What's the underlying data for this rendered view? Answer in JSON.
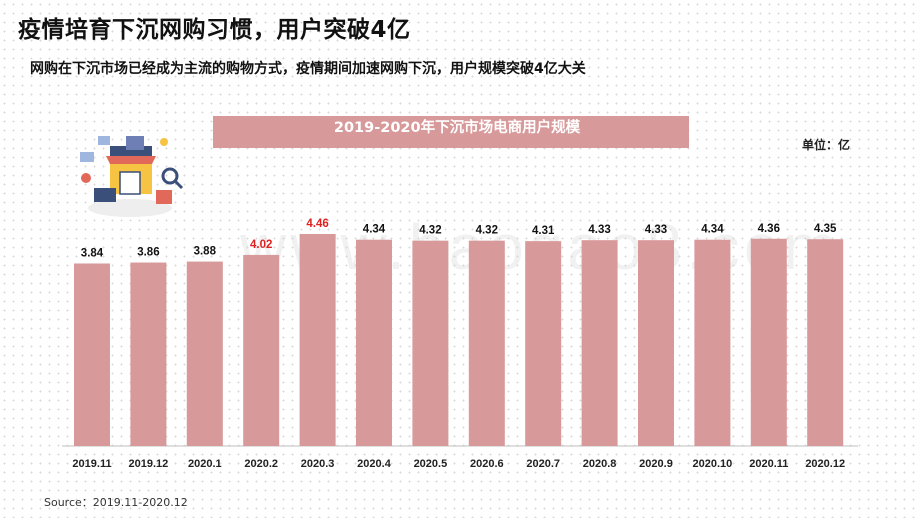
{
  "page": {
    "title": "疫情培育下沉网购习惯，用户突破4亿",
    "subtitle": "网购在下沉市场已经成为主流的购物方式，疫情期间加速网购下沉，用户规模突破4亿大关",
    "source": "Source：2019.11-2020.12",
    "watermark": "www.baogao8.com"
  },
  "chart_data": {
    "type": "bar",
    "title": "2019-2020年下沉市场电商用户规模",
    "unit": "单位：亿",
    "categories": [
      "2019.11",
      "2019.12",
      "2020.1",
      "2020.2",
      "2020.3",
      "2020.4",
      "2020.5",
      "2020.6",
      "2020.7",
      "2020.8",
      "2020.9",
      "2020.10",
      "2020.11",
      "2020.12"
    ],
    "values": [
      3.84,
      3.86,
      3.88,
      4.02,
      4.46,
      4.34,
      4.32,
      4.32,
      4.31,
      4.33,
      4.33,
      4.34,
      4.36,
      4.35
    ],
    "highlighted_labels": [
      "2020.2",
      "2020.3"
    ],
    "colors": {
      "bar": "#d8999b",
      "label": "#111111",
      "highlight": "#e02020"
    },
    "ylim": [
      0,
      4.46
    ],
    "grid": false,
    "legend": "none"
  }
}
